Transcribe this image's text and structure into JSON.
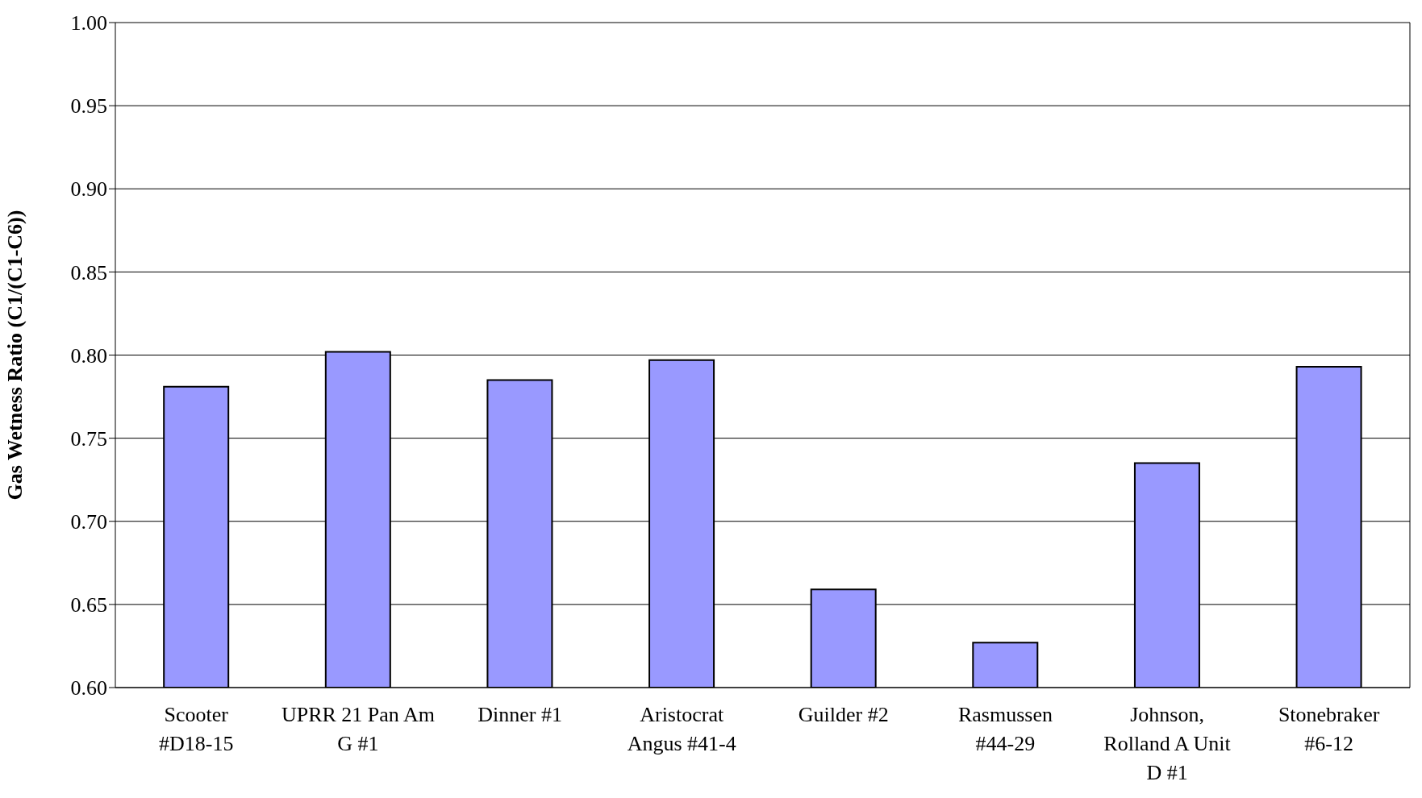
{
  "chart_data": {
    "type": "bar",
    "ylabel": "Gas Wetness Ratio (C1/(C1-C6))",
    "categories": [
      "Scooter #D18-15",
      "UPRR 21 Pan Am G #1",
      "Dinner #1",
      "Aristocrat Angus #41-4",
      "Guilder #2",
      "Rasmussen #44-29",
      "Johnson, Rolland A Unit D #1",
      "Stonebraker #6-12"
    ],
    "values": [
      0.781,
      0.802,
      0.785,
      0.797,
      0.659,
      0.627,
      0.735,
      0.793
    ],
    "color": "#9999ff",
    "ylim": [
      0.6,
      1.0
    ],
    "yticks": [
      {
        "value": 0.6,
        "label": "0.60"
      },
      {
        "value": 0.65,
        "label": "0.65"
      },
      {
        "value": 0.7,
        "label": "0.70"
      },
      {
        "value": 0.75,
        "label": "0.75"
      },
      {
        "value": 0.8,
        "label": "0.80"
      },
      {
        "value": 0.85,
        "label": "0.85"
      },
      {
        "value": 0.9,
        "label": "0.90"
      },
      {
        "value": 0.95,
        "label": "0.95"
      },
      {
        "value": 1.0,
        "label": "1.00"
      }
    ],
    "grid": "y",
    "legend": false
  }
}
